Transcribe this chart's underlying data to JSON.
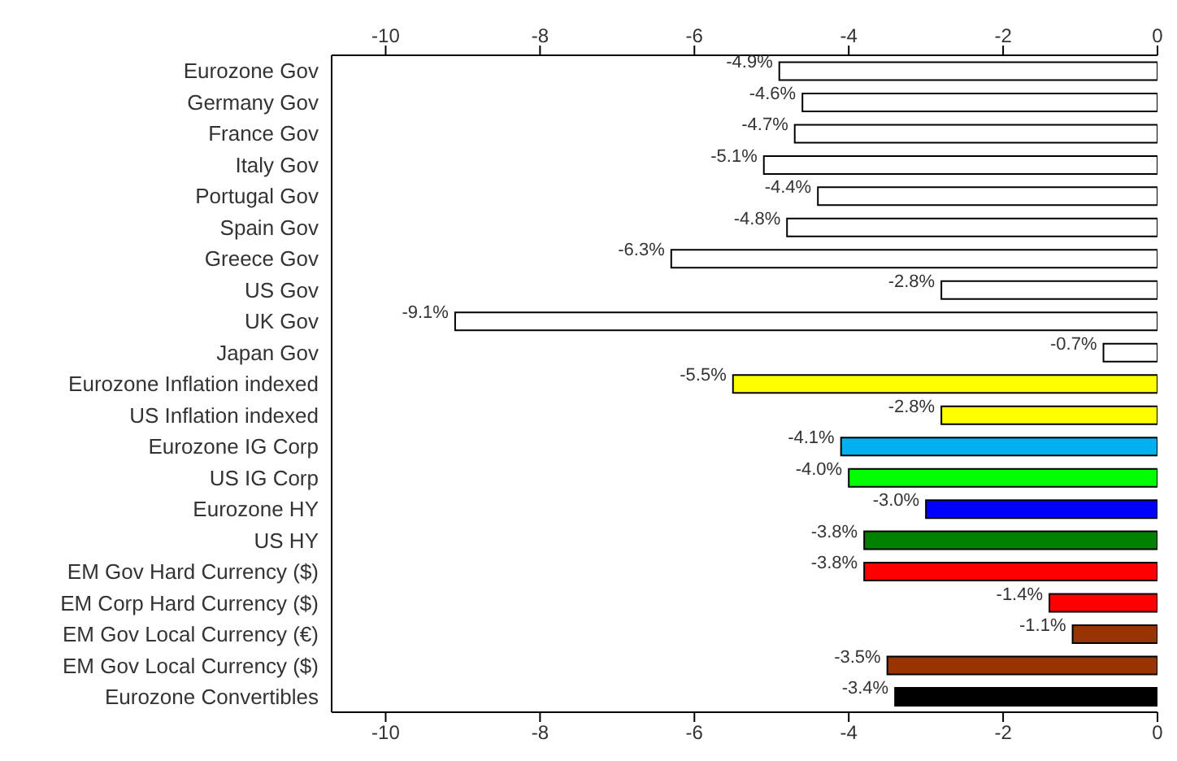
{
  "chart_data": {
    "type": "bar",
    "orientation": "horizontal",
    "categories": [
      "Eurozone Gov",
      "Germany Gov",
      "France Gov",
      "Italy Gov",
      "Portugal Gov",
      "Spain Gov",
      "Greece Gov",
      "US Gov",
      "UK Gov",
      "Japan Gov",
      "Eurozone Inflation indexed",
      "US Inflation indexed",
      "Eurozone IG Corp",
      "US IG Corp",
      "Eurozone HY",
      "US HY",
      "EM Gov Hard Currency ($)",
      "EM Corp Hard Currency ($)",
      "EM Gov Local Currency (€)",
      "EM Gov Local Currency ($)",
      "Eurozone Convertibles"
    ],
    "values": [
      -4.9,
      -4.6,
      -4.7,
      -5.1,
      -4.4,
      -4.8,
      -6.3,
      -2.8,
      -9.1,
      -0.7,
      -5.5,
      -2.8,
      -4.1,
      -4.0,
      -3.0,
      -3.8,
      -3.8,
      -1.4,
      -1.1,
      -3.5,
      -3.4
    ],
    "value_labels": [
      "-4.9%",
      "-4.6%",
      "-4.7%",
      "-5.1%",
      "-4.4%",
      "-4.8%",
      "-6.3%",
      "-2.8%",
      "-9.1%",
      "-0.7%",
      "-5.5%",
      "-2.8%",
      "-4.1%",
      "-4.0%",
      "-3.0%",
      "-3.8%",
      "-3.8%",
      "-1.4%",
      "-1.1%",
      "-3.5%",
      "-3.4%"
    ],
    "colors": [
      "#ffffff",
      "#ffffff",
      "#ffffff",
      "#ffffff",
      "#ffffff",
      "#ffffff",
      "#ffffff",
      "#ffffff",
      "#ffffff",
      "#ffffff",
      "#ffff00",
      "#ffff00",
      "#00b0f0",
      "#00ff00",
      "#0000ff",
      "#008000",
      "#ff0000",
      "#ff0000",
      "#993300",
      "#993300",
      "#000000"
    ],
    "xlim": [
      -10.7,
      0
    ],
    "xticks": [
      -10,
      -8,
      -6,
      -4,
      -2,
      0
    ],
    "x2lim": [
      -10.7,
      0
    ],
    "x2ticks": [
      -10,
      -8,
      -6,
      -4,
      -2,
      0
    ]
  }
}
